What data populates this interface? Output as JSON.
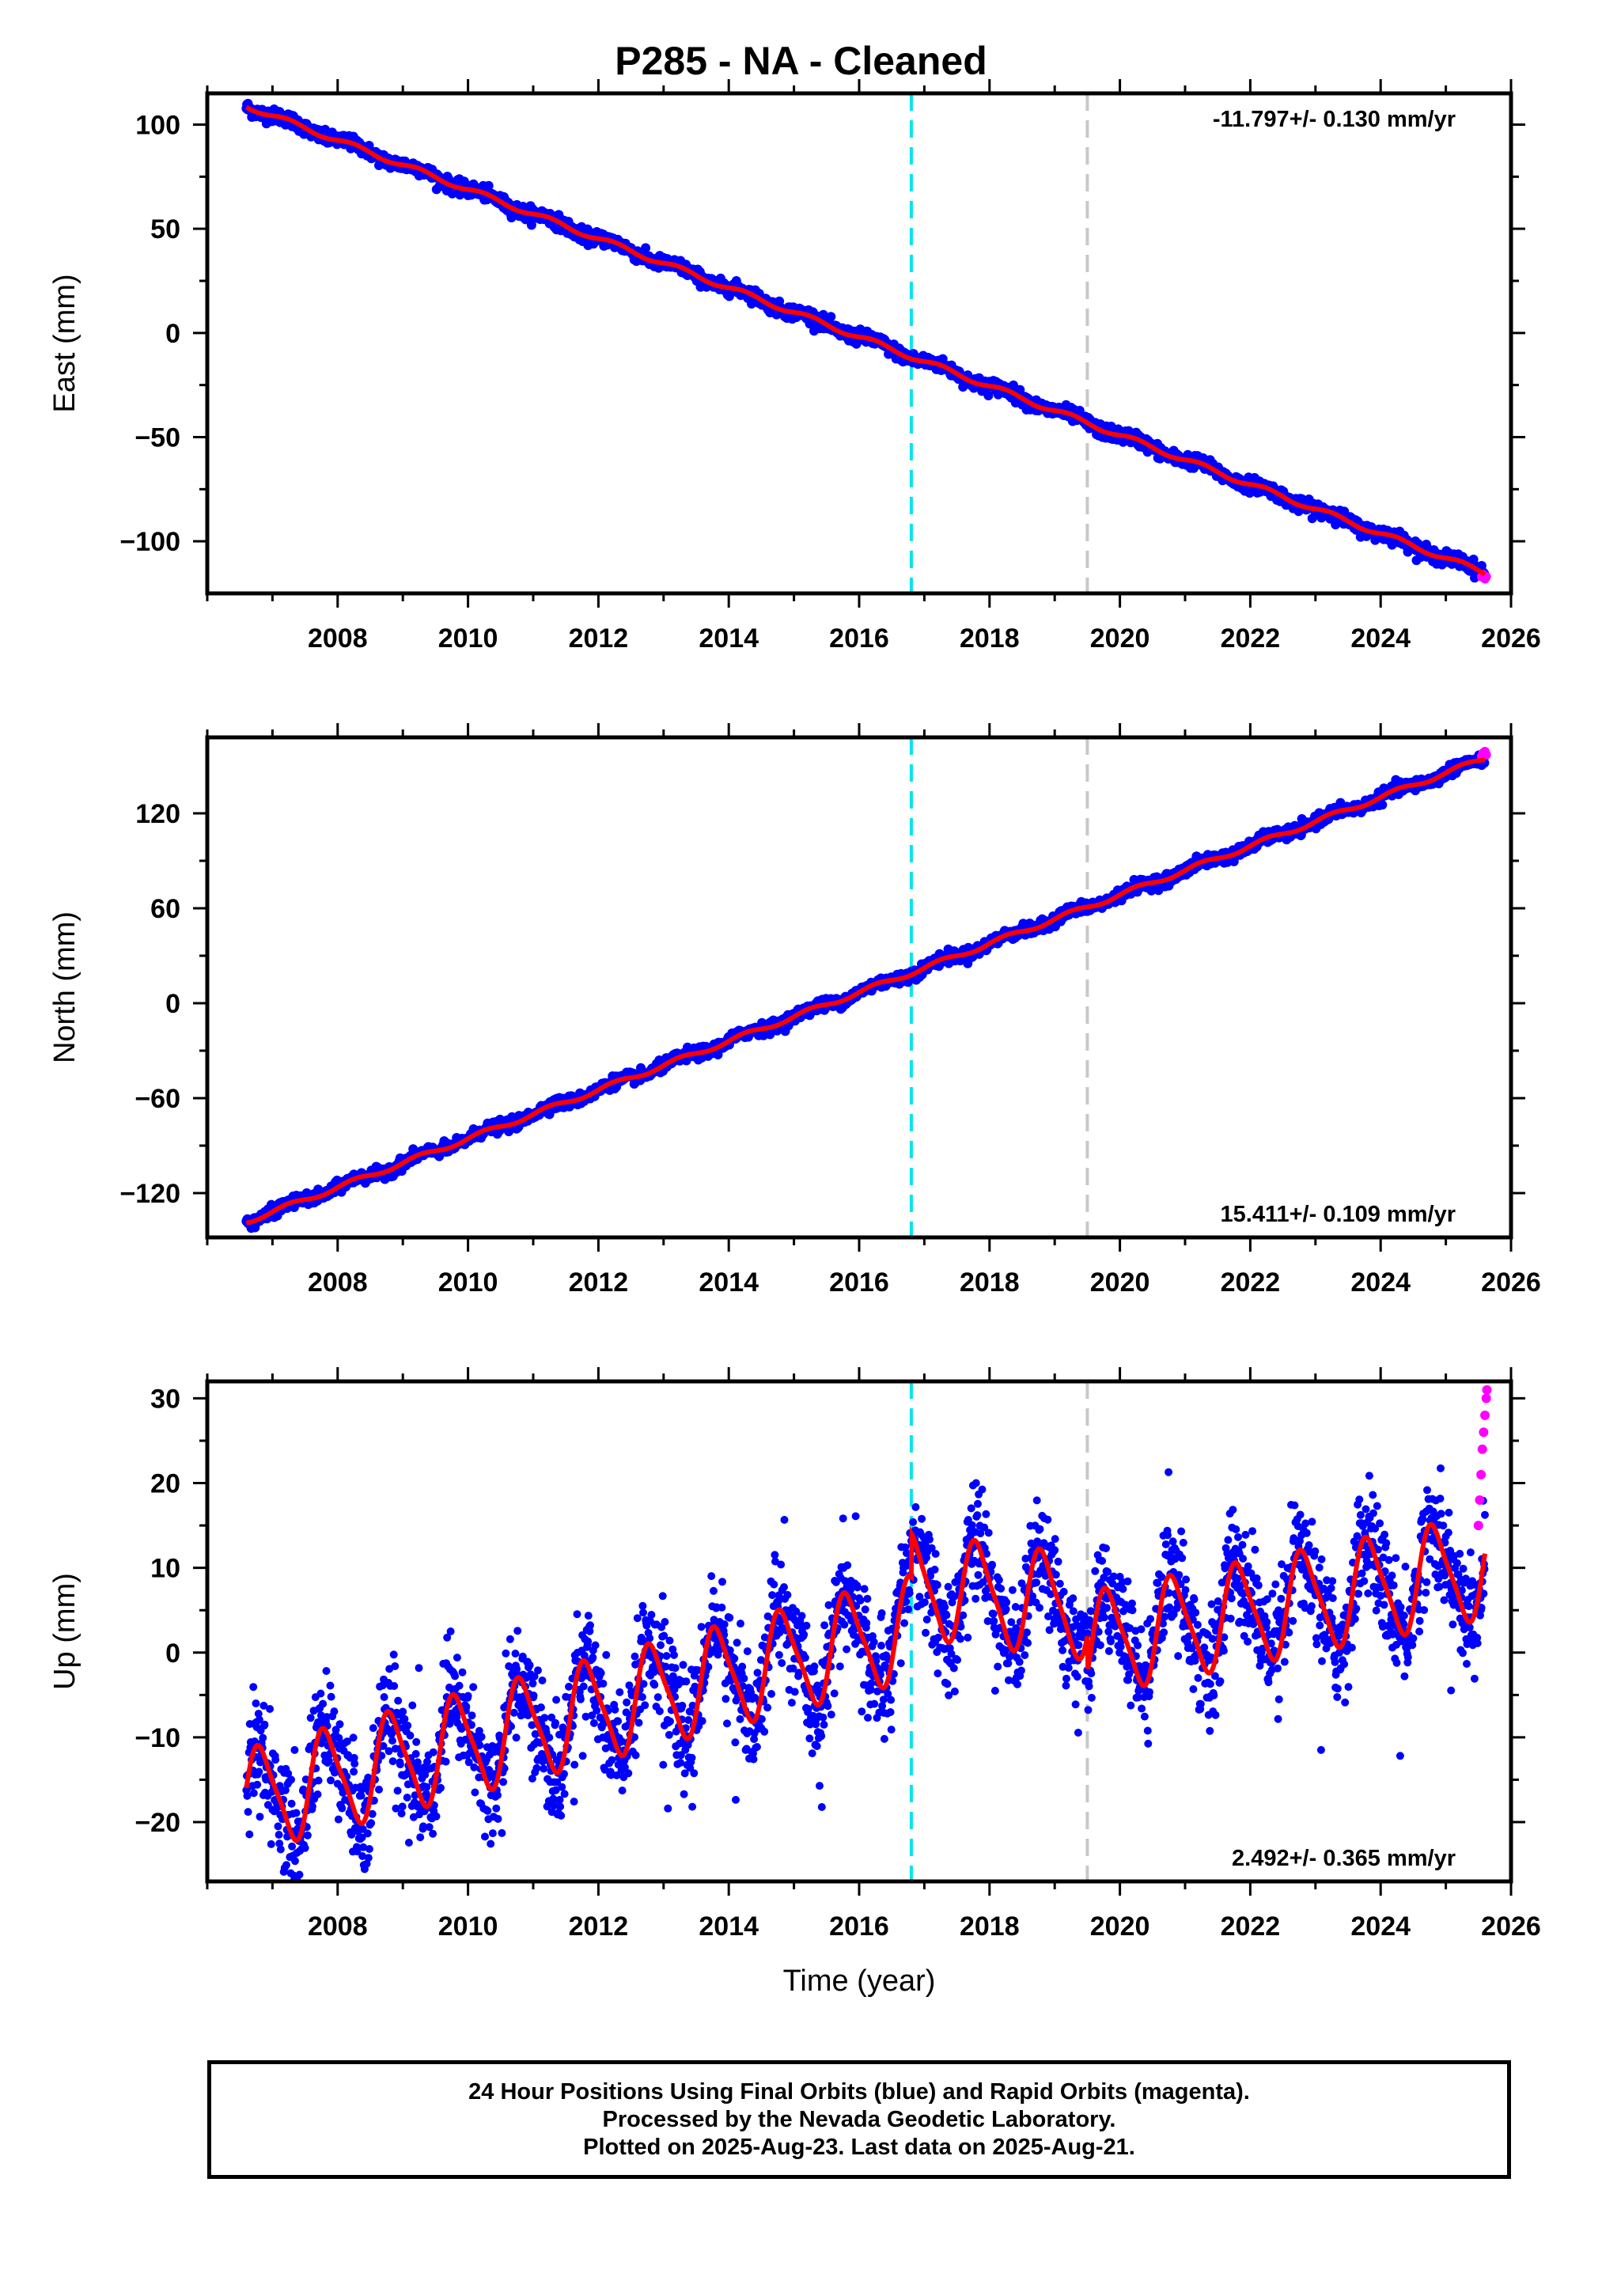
{
  "title": "P285  - NA - Cleaned",
  "footer": {
    "line1": "24 Hour Positions Using Final Orbits (blue) and Rapid Orbits (magenta).",
    "line2": "Processed by the Nevada Geodetic Laboratory.",
    "line3": "Plotted on 2025-Aug-23. Last data on 2025-Aug-21."
  },
  "colors": {
    "final_orbits": "#0000ff",
    "rapid_orbits": "#ff00ff",
    "model_fit": "#ff0000",
    "event_line_cyan": "#00e5ee",
    "event_line_gray": "#c8c8c8"
  },
  "chart_data": [
    {
      "type": "scatter",
      "panel": "east",
      "ylabel": "East (mm)",
      "xlabel": "",
      "xlim": [
        2006.0,
        2026.0
      ],
      "ylim": [
        -125,
        115
      ],
      "x_ticks": [
        2008,
        2010,
        2012,
        2014,
        2016,
        2018,
        2020,
        2022,
        2024,
        2026
      ],
      "y_ticks": [
        -100,
        -50,
        0,
        50,
        100
      ],
      "y_tick_labels": [
        "−100",
        "−50",
        "0",
        "50",
        "100"
      ],
      "rate_label": "-11.797+/- 0.130 mm/yr",
      "rate_label_position": "top-right",
      "trend": {
        "rate_mm_per_yr": -11.797,
        "value_at_start": 109,
        "start_year": 2006.6,
        "annual_amplitude": 1.2,
        "noise": 1.6
      },
      "data_range": [
        2006.6,
        2025.6
      ],
      "rapid_points": {
        "x": [
          2025.55,
          2025.57,
          2025.6,
          2025.62
        ],
        "y": [
          -117,
          -116,
          -118,
          -117
        ]
      },
      "event_lines": [
        {
          "x": 2016.8,
          "color": "cyan"
        },
        {
          "x": 2019.5,
          "color": "gray"
        }
      ],
      "grid": false
    },
    {
      "type": "scatter",
      "panel": "north",
      "ylabel": "North (mm)",
      "xlabel": "",
      "xlim": [
        2006.0,
        2026.0
      ],
      "ylim": [
        -148,
        168
      ],
      "x_ticks": [
        2008,
        2010,
        2012,
        2014,
        2016,
        2018,
        2020,
        2022,
        2024,
        2026
      ],
      "y_ticks": [
        -120,
        -60,
        0,
        60,
        120
      ],
      "y_tick_labels": [
        "−120",
        "−60",
        "0",
        "60",
        "120"
      ],
      "rate_label": "15.411+/- 0.109 mm/yr",
      "rate_label_position": "bottom-right",
      "trend": {
        "rate_mm_per_yr": 15.411,
        "value_at_start": -138,
        "start_year": 2006.6,
        "annual_amplitude": 1.5,
        "noise": 1.8
      },
      "data_range": [
        2006.6,
        2025.6
      ],
      "rapid_points": {
        "x": [
          2025.55,
          2025.57,
          2025.6,
          2025.62
        ],
        "y": [
          156,
          158,
          159,
          157
        ]
      },
      "event_lines": [
        {
          "x": 2016.8,
          "color": "cyan"
        },
        {
          "x": 2019.5,
          "color": "gray"
        }
      ],
      "grid": false
    },
    {
      "type": "scatter",
      "panel": "up",
      "ylabel": "Up (mm)",
      "xlabel": "Time (year)",
      "xlim": [
        2006.0,
        2026.0
      ],
      "ylim": [
        -27,
        32
      ],
      "x_ticks": [
        2008,
        2010,
        2012,
        2014,
        2016,
        2018,
        2020,
        2022,
        2024,
        2026
      ],
      "y_ticks": [
        -20,
        -10,
        0,
        10,
        20,
        30
      ],
      "y_tick_labels": [
        "−20",
        "−10",
        "0",
        "10",
        "20",
        "30"
      ],
      "rate_label": "2.492+/- 0.365 mm/yr",
      "rate_label_position": "bottom-right",
      "segments": [
        {
          "x_range": [
            2006.6,
            2016.8
          ],
          "offset": -17.5,
          "rate": 2.0
        },
        {
          "x_range": [
            2016.8,
            2019.5
          ],
          "offset": 8.0,
          "rate": -1.0
        },
        {
          "x_range": [
            2019.5,
            2025.6
          ],
          "offset": 1.0,
          "rate": 1.5
        }
      ],
      "seasonal": {
        "annual_amplitude": 5.8,
        "phase_year_fraction_of_peak": 0.82,
        "semiannual_amplitude": 1.2
      },
      "noise": 3.2,
      "data_range": [
        2006.6,
        2025.6
      ],
      "rapid_points": {
        "x": [
          2025.5,
          2025.52,
          2025.54,
          2025.56,
          2025.58,
          2025.6,
          2025.62,
          2025.63
        ],
        "y": [
          15,
          18,
          21,
          24,
          26,
          28,
          30,
          31
        ]
      },
      "event_lines": [
        {
          "x": 2016.8,
          "color": "cyan"
        },
        {
          "x": 2019.5,
          "color": "gray"
        }
      ],
      "grid": false
    }
  ]
}
